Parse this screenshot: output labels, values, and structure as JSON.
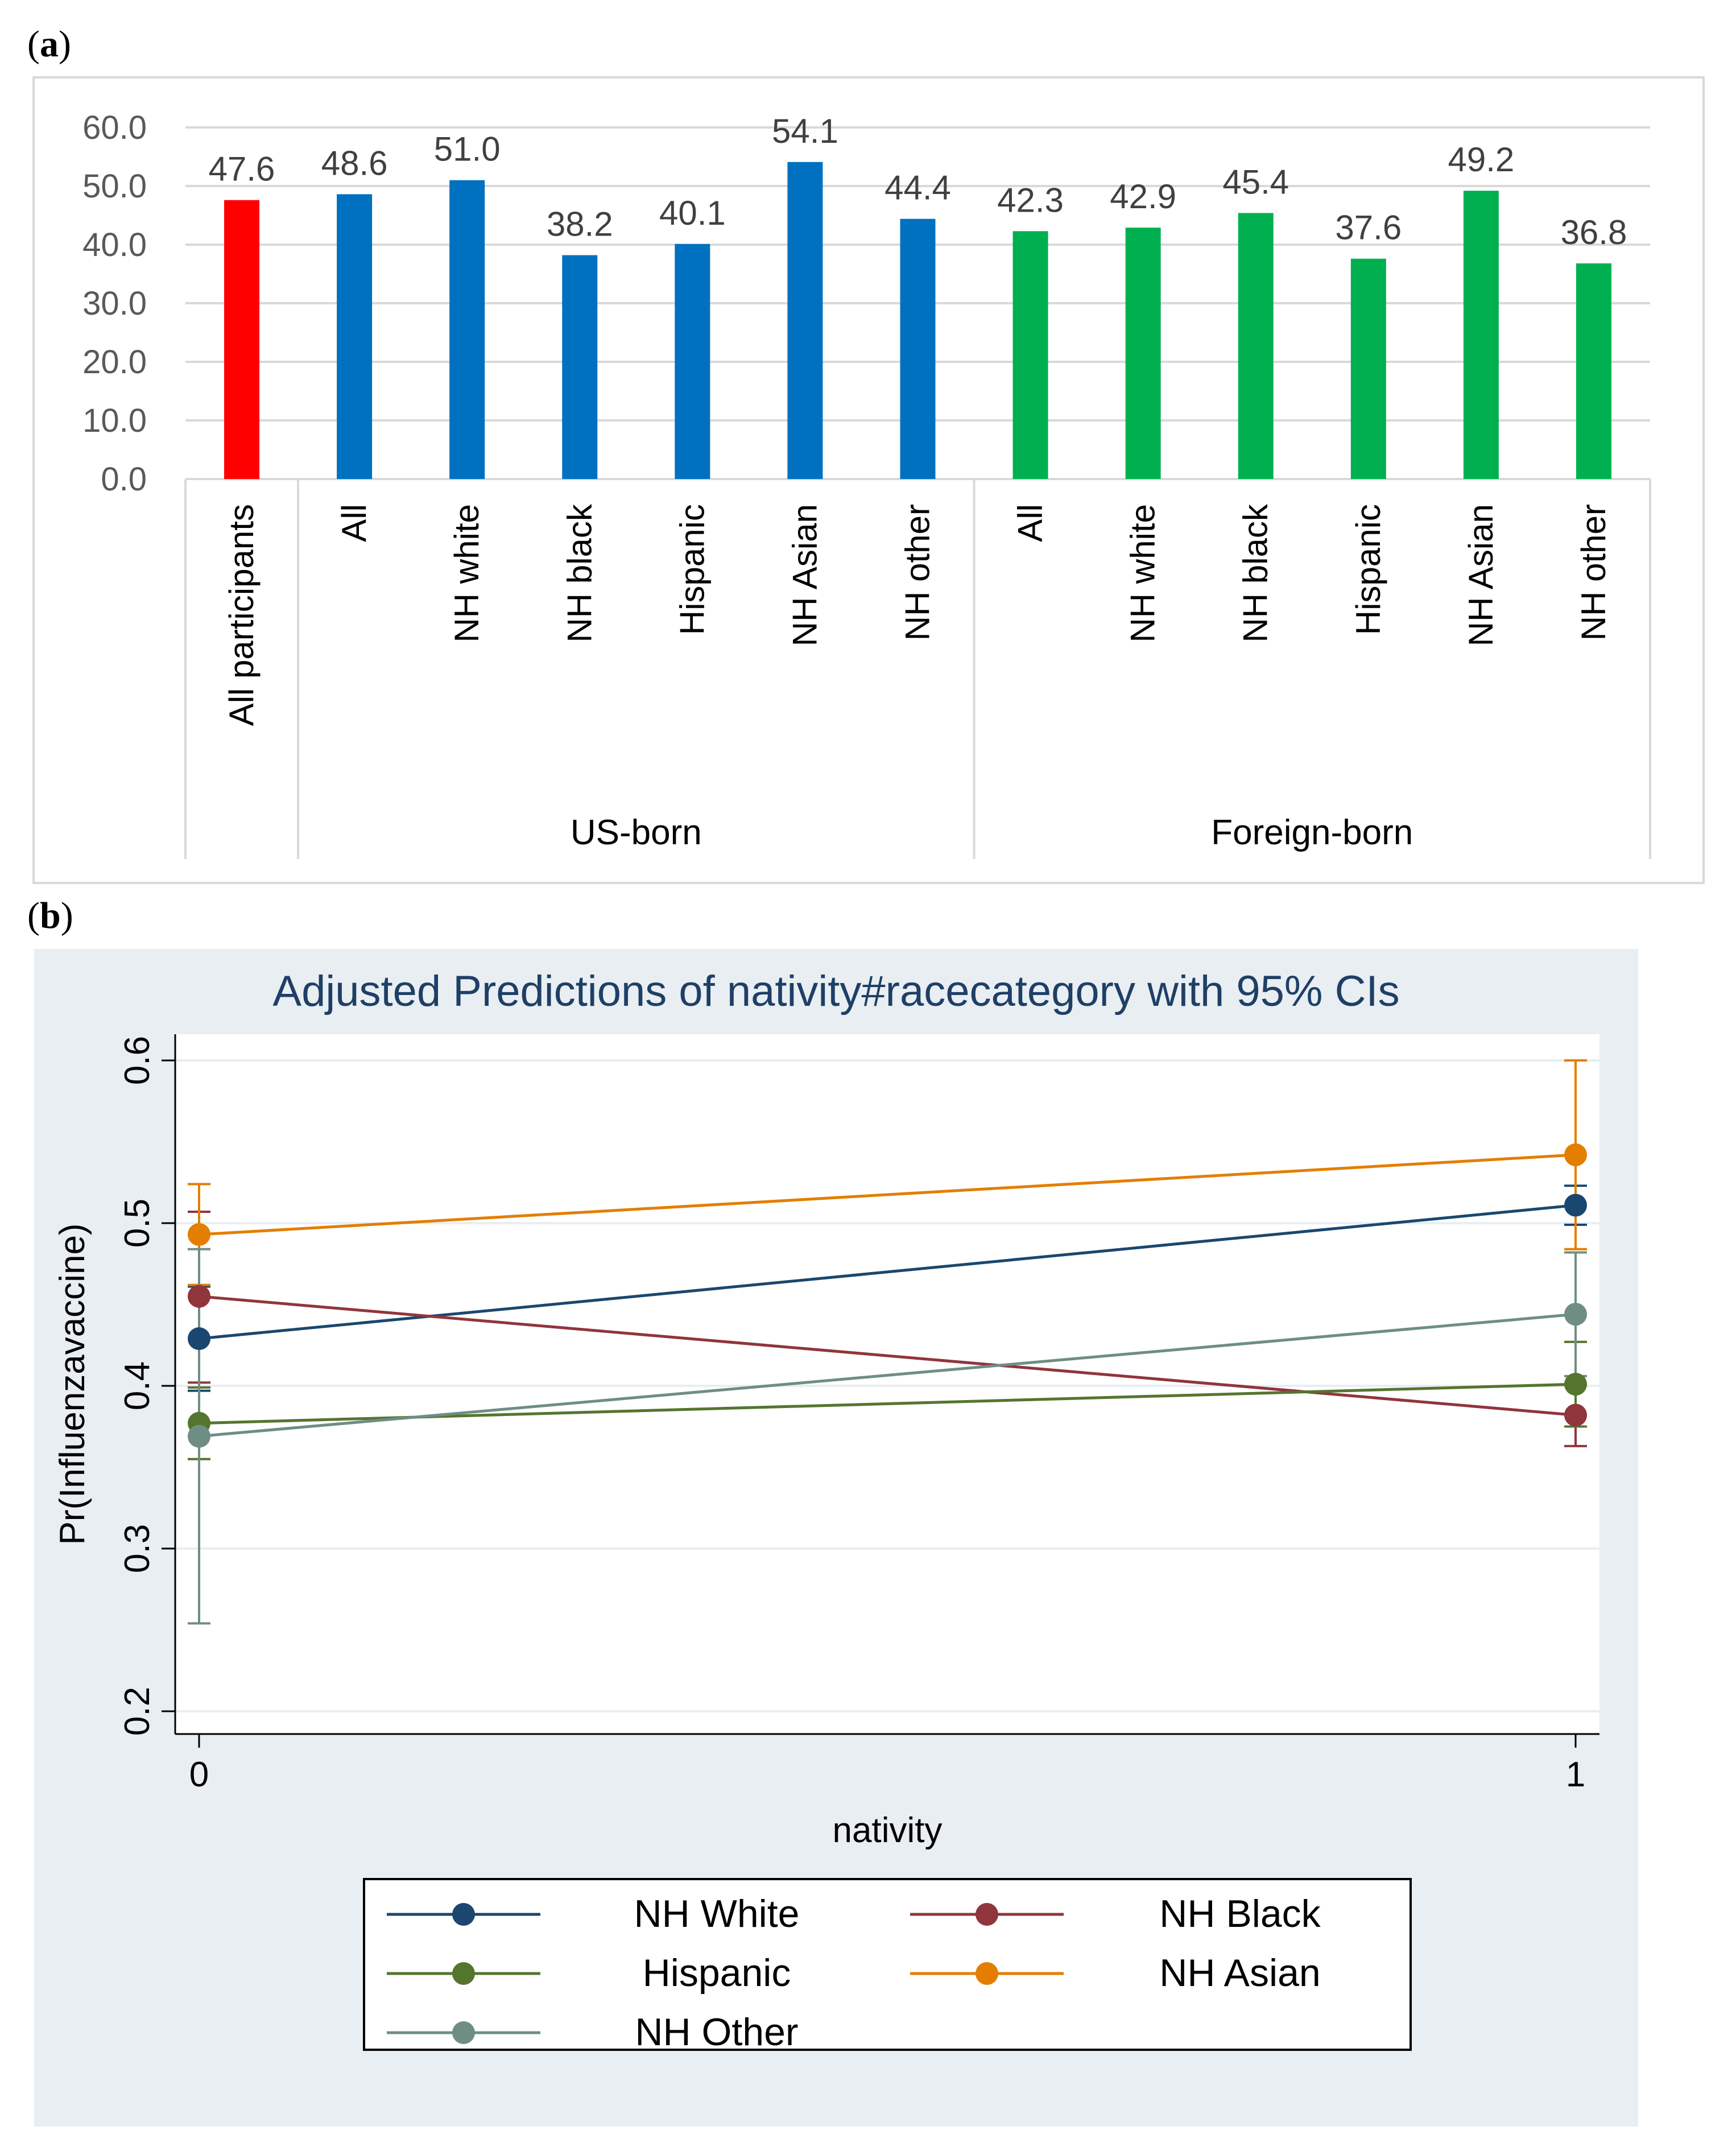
{
  "panel_a_label": "a",
  "panel_b_label": "b",
  "chart_data": [
    {
      "type": "bar",
      "categories": [
        "All participants",
        "All",
        "NH white",
        "NH black",
        "Hispanic",
        "NH Asian",
        "NH other",
        "All",
        "NH white",
        "NH black",
        "Hispanic",
        "NH Asian",
        "NH other"
      ],
      "groups": [
        {
          "label": "",
          "start": 0,
          "end": 0
        },
        {
          "label": "US-born",
          "start": 1,
          "end": 6
        },
        {
          "label": "Foreign-born",
          "start": 7,
          "end": 12
        }
      ],
      "values": [
        47.6,
        48.6,
        51.0,
        38.2,
        40.1,
        54.1,
        44.4,
        42.3,
        42.9,
        45.4,
        37.6,
        49.2,
        36.8
      ],
      "data_labels": [
        "47.6",
        "48.6",
        "51.0",
        "38.2",
        "40.1",
        "54.1",
        "44.4",
        "42.3",
        "42.9",
        "45.4",
        "37.6",
        "49.2",
        "36.8"
      ],
      "colors": [
        "#ff0000",
        "#0070c0",
        "#0070c0",
        "#0070c0",
        "#0070c0",
        "#0070c0",
        "#0070c0",
        "#00b050",
        "#00b050",
        "#00b050",
        "#00b050",
        "#00b050",
        "#00b050"
      ],
      "yticks": [
        "0.0",
        "10.0",
        "20.0",
        "30.0",
        "40.0",
        "50.0",
        "60.0"
      ],
      "ylim": [
        0,
        60
      ],
      "grid": true
    },
    {
      "type": "line",
      "title": "Adjusted Predictions of nativity#racecategory with 95% CIs",
      "xlabel": "nativity",
      "ylabel": "Pr(Influenzavaccine)",
      "x": [
        0,
        1
      ],
      "xticks": [
        "0",
        "1"
      ],
      "yticks": [
        "0.2",
        "0.3",
        "0.4",
        "0.5",
        "0.6"
      ],
      "ylim": [
        0.2,
        0.6
      ],
      "series": [
        {
          "name": "NH White",
          "color": "#1a476f",
          "values": [
            0.429,
            0.511
          ],
          "ci_low": [
            0.397,
            0.499
          ],
          "ci_high": [
            0.461,
            0.523
          ]
        },
        {
          "name": "NH Black",
          "color": "#90353b",
          "values": [
            0.455,
            0.382
          ],
          "ci_low": [
            0.402,
            0.363
          ],
          "ci_high": [
            0.507,
            0.401
          ]
        },
        {
          "name": "Hispanic",
          "color": "#55752f",
          "values": [
            0.377,
            0.401
          ],
          "ci_low": [
            0.355,
            0.375
          ],
          "ci_high": [
            0.399,
            0.427
          ]
        },
        {
          "name": "NH Asian",
          "color": "#e37e00",
          "values": [
            0.493,
            0.542
          ],
          "ci_low": [
            0.462,
            0.484
          ],
          "ci_high": [
            0.524,
            0.6
          ]
        },
        {
          "name": "NH Other",
          "color": "#6e8e84",
          "values": [
            0.369,
            0.444
          ],
          "ci_low": [
            0.254,
            0.406
          ],
          "ci_high": [
            0.484,
            0.482
          ]
        }
      ],
      "legend_position": "bottom",
      "grid": true
    }
  ]
}
